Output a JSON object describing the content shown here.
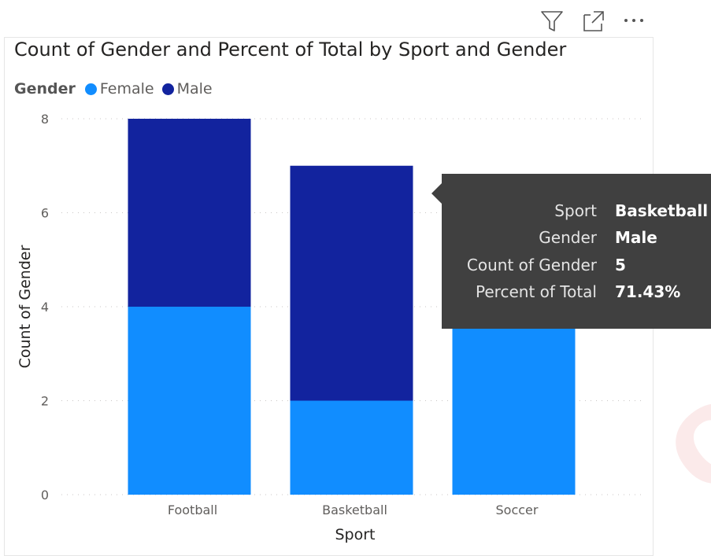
{
  "toolbar": {
    "filter_icon": "filter-icon",
    "focus_icon": "focus-mode-icon",
    "more_icon": "more-options-icon"
  },
  "colors": {
    "female": "#118dff",
    "male": "#12239e",
    "grid": "#c8c6c4",
    "tooltip_bg": "#404040"
  },
  "legend": {
    "title": "Gender",
    "items": [
      {
        "label": "Female",
        "color": "#118dff"
      },
      {
        "label": "Male",
        "color": "#12239e"
      }
    ]
  },
  "chart_data": {
    "type": "bar",
    "stacked": true,
    "title": "Count of Gender and Percent of Total by Sport and Gender",
    "xlabel": "Sport",
    "ylabel": "Count of Gender",
    "categories": [
      "Football",
      "Basketball",
      "Soccer"
    ],
    "series": [
      {
        "name": "Female",
        "values": [
          4,
          2,
          5
        ],
        "color": "#118dff"
      },
      {
        "name": "Male",
        "values": [
          4,
          5,
          0
        ],
        "color": "#12239e"
      }
    ],
    "ylim": [
      0,
      8
    ],
    "yticks": [
      0,
      2,
      4,
      6,
      8
    ],
    "grid": true,
    "legend_position": "top-left"
  },
  "tooltip": {
    "rows": [
      {
        "key": "Sport",
        "value": "Basketball"
      },
      {
        "key": "Gender",
        "value": "Male"
      },
      {
        "key": "Count of Gender",
        "value": "5"
      },
      {
        "key": "Percent of Total",
        "value": "71.43%"
      }
    ]
  }
}
